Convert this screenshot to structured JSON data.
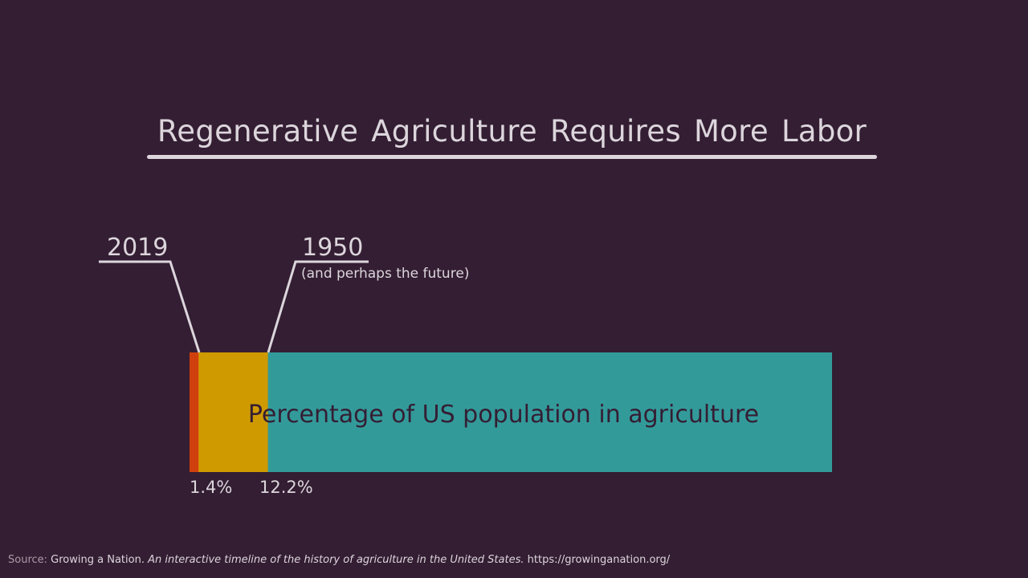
{
  "title": "Regenerative Agriculture Requires More Labor",
  "chart_data": {
    "type": "bar",
    "orientation": "horizontal-stacked",
    "bar_label": "Percentage of US population in agriculture",
    "scale_max_percent": 100,
    "segments": [
      {
        "name": "2019",
        "value": 1.4,
        "label": "1.4%",
        "color": "#d0400c"
      },
      {
        "name": "1950",
        "value": 12.2,
        "label": "12.2%",
        "color": "#cf9a00"
      },
      {
        "name": "",
        "value": 100,
        "label": "",
        "color": "#339a9a"
      }
    ],
    "callouts": [
      {
        "year": "2019",
        "subtitle": ""
      },
      {
        "year": "1950",
        "subtitle": "(and perhaps the future)"
      }
    ]
  },
  "source": {
    "prefix": "Source:",
    "name": "Growing a Nation.",
    "italic": "An interactive timeline of the history of agriculture in the United States.",
    "url": "https://growinganation.org/"
  },
  "colors": {
    "background": "#341e33",
    "text": "#dcd6dc"
  }
}
